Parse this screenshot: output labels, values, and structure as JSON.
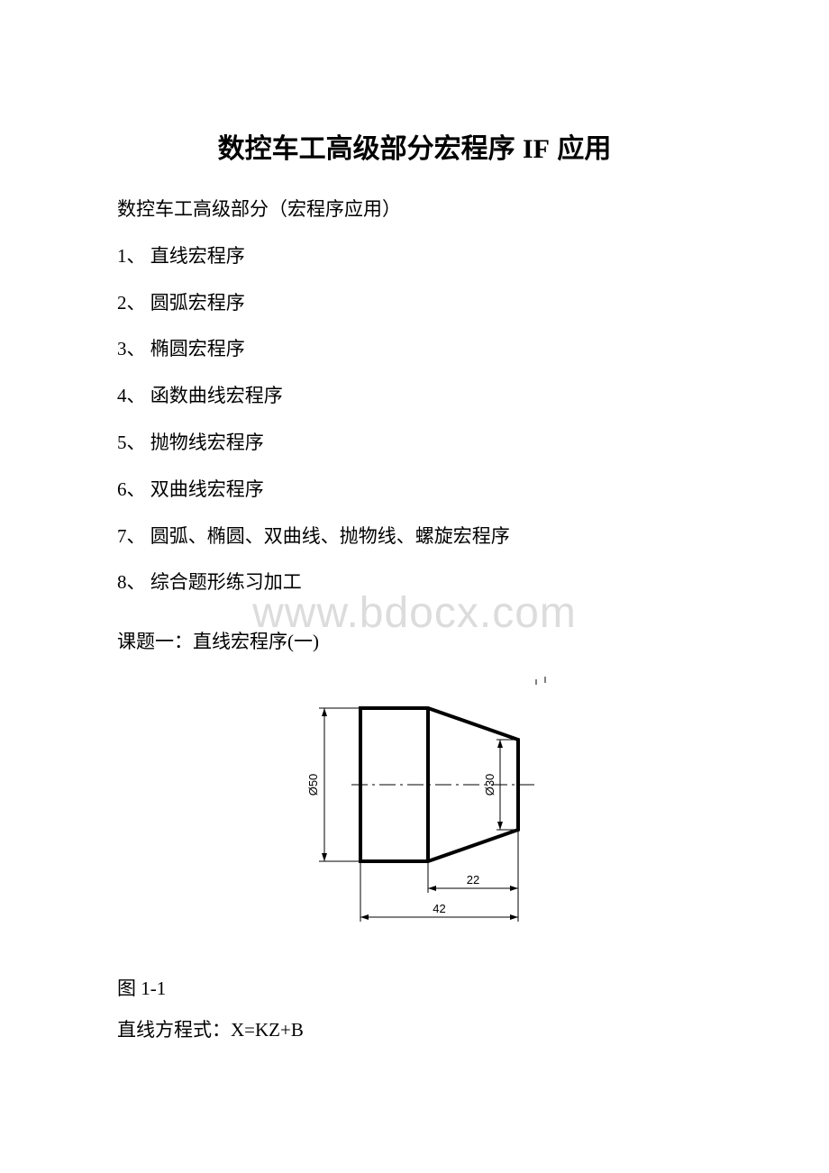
{
  "title": {
    "prefix": "数控车工高级部分宏程序 ",
    "if_text": "IF",
    "suffix": " 应用"
  },
  "subtitle": "数控车工高级部分（宏程序应用）",
  "list": [
    "1、 直线宏程序",
    "2、 圆弧宏程序",
    "3、 椭圆宏程序",
    "4、 函数曲线宏程序",
    "5、 抛物线宏程序",
    "6、 双曲线宏程序",
    "7、 圆弧、椭圆、双曲线、抛物线、螺旋宏程序",
    "8、 综合题形练习加工"
  ],
  "watermark": "www.bdocx.com",
  "topic": "课题一：直线宏程序(一)",
  "figure_label": "图 1-1",
  "equation": "直线方程式：X=KZ+B",
  "diagram": {
    "stroke_main": "#000000",
    "stroke_width_heavy": 4,
    "stroke_width_thin": 1,
    "dim_font_size": 13,
    "labels": {
      "dia50": "Ø50",
      "dia30": "Ø30",
      "len22": "22",
      "len42": "42"
    }
  }
}
